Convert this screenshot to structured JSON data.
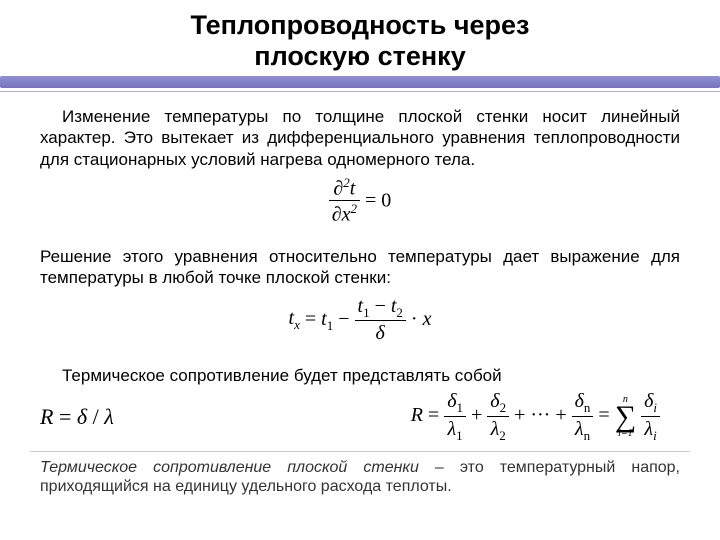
{
  "title": "Теплопроводность через\nплоскую стенку",
  "para1": "Изменение температуры по толщине плоской стенки носит линейный характер. Это вытекает из дифференциального уравнения теплопроводности для стационарных условий нагрева одномерного тела.",
  "para2": "Решение этого уравнения относительно температуры дает выражение для температуры в любой точке плоской стенки:",
  "para3": "Термическое сопротивление будет представлять собой",
  "definition_em": "Термическое сопротивление плоской стенки",
  "definition_rest": " – это температурный напор, приходящийся на единицу удельного расхода теплоты.",
  "colors": {
    "accent": "#7575c0",
    "text": "#000000",
    "bg": "#ffffff"
  }
}
